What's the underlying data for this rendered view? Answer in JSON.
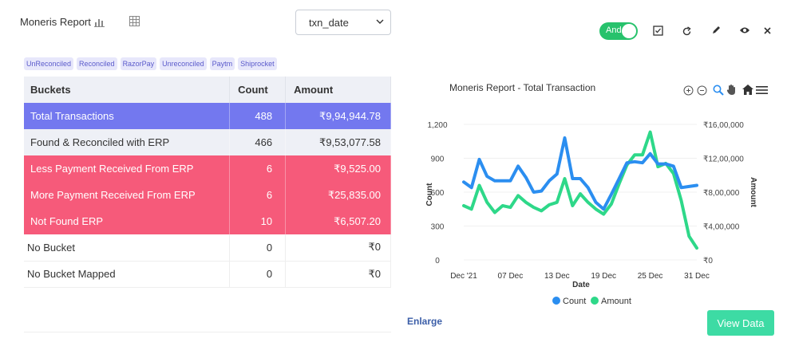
{
  "header": {
    "title": "Moneris Report",
    "select_value": "txn_date",
    "toggle_label": "And"
  },
  "chips": [
    "UnReconciled",
    "Reconciled",
    "RazorPay",
    "Unreconciled",
    "Paytm",
    "Shiprocket"
  ],
  "table": {
    "headers": [
      "Buckets",
      "Count",
      "Amount"
    ],
    "rows": [
      {
        "bucket": "Total  Transactions",
        "count": "488",
        "amount": "₹9,94,944.78"
      },
      {
        "bucket": "Found & Reconciled with ERP",
        "count": "466",
        "amount": "₹9,53,077.58"
      },
      {
        "bucket": "Less Payment Received From ERP",
        "count": "6",
        "amount": "₹9,525.00"
      },
      {
        "bucket": "More Payment Received From ERP",
        "count": "6",
        "amount": "₹25,835.00"
      },
      {
        "bucket": "Not Found ERP",
        "count": "10",
        "amount": "₹6,507.20"
      },
      {
        "bucket": "No Bucket",
        "count": "0",
        "amount": "₹0"
      },
      {
        "bucket": "No Bucket Mapped",
        "count": "0",
        "amount": "₹0"
      }
    ]
  },
  "actions": {
    "enlarge": "Enlarge",
    "view_data": "View Data"
  },
  "colors": {
    "total_row": "#7378ef",
    "red_row": "#f65a7a",
    "toggle": "#27c26c",
    "count_series": "#2b8ef0",
    "amount_series": "#2ed889"
  },
  "chart_data": {
    "type": "line",
    "title": "Moneris Report - Total Transaction",
    "xlabel": "Date",
    "ylabel_left": "Count",
    "ylabel_right": "Amount",
    "x_ticks": [
      "Dec '21",
      "07 Dec",
      "13 Dec",
      "19 Dec",
      "25 Dec",
      "31 Dec"
    ],
    "y_left_ticks": [
      "1,200",
      "900",
      "600",
      "300",
      "0"
    ],
    "y_right_ticks": [
      "₹16,00,000",
      "₹12,00,000",
      "₹8,00,000",
      "₹4,00,000",
      "₹0"
    ],
    "ylim_left": [
      0,
      1200
    ],
    "ylim_right": [
      0,
      1600000
    ],
    "legend_position": "bottom",
    "series": [
      {
        "name": "Count",
        "axis": "left",
        "values": [
          690,
          640,
          890,
          740,
          700,
          700,
          700,
          830,
          730,
          600,
          610,
          700,
          760,
          1080,
          720,
          720,
          640,
          510,
          450,
          580,
          720,
          860,
          870,
          860,
          940,
          850,
          850,
          830,
          640,
          650,
          660
        ]
      },
      {
        "name": "Amount",
        "axis": "right",
        "values": [
          640000,
          600000,
          880000,
          680000,
          560000,
          640000,
          620000,
          760000,
          680000,
          620000,
          580000,
          650000,
          680000,
          960000,
          640000,
          780000,
          680000,
          600000,
          540000,
          660000,
          900000,
          1120000,
          1240000,
          1240000,
          1510000,
          1100000,
          1140000,
          1020000,
          700000,
          280000,
          140000
        ]
      }
    ]
  }
}
